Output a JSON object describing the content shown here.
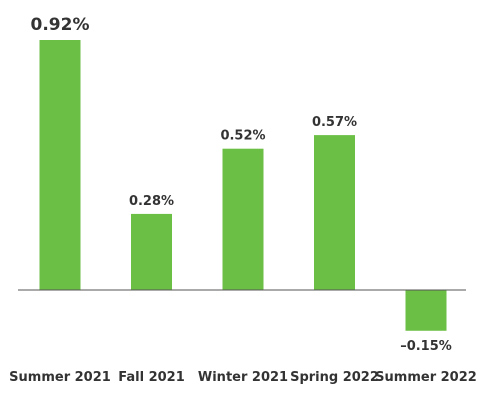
{
  "chart_data": {
    "type": "bar",
    "categories": [
      "Summer 2021",
      "Fall 2021",
      "Winter 2021",
      "Spring 2022",
      "Summer 2022"
    ],
    "values": [
      0.92,
      0.28,
      0.52,
      0.57,
      -0.15
    ],
    "data_labels": [
      "0.92%",
      "0.28%",
      "0.52%",
      "0.57%",
      "–0.15%"
    ],
    "title": "",
    "xlabel": "",
    "ylabel": "",
    "grid": false,
    "legend": "none",
    "bar_color": "#6bbf45",
    "baseline_color": "#555555",
    "text_color": "#333333"
  }
}
